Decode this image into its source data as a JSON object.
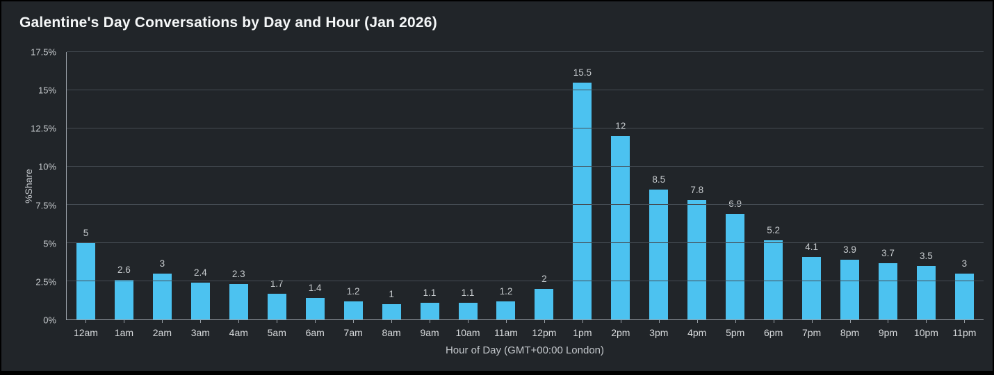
{
  "page": {
    "background_color": "#212529",
    "frame_color": "#000000"
  },
  "chart_data": {
    "type": "bar",
    "title": "Galentine's Day Conversations by Day and Hour (Jan 2026)",
    "xlabel": "Hour of Day (GMT+00:00 London)",
    "ylabel": "%Share",
    "categories": [
      "12am",
      "1am",
      "2am",
      "3am",
      "4am",
      "5am",
      "6am",
      "7am",
      "8am",
      "9am",
      "10am",
      "11am",
      "12pm",
      "1pm",
      "2pm",
      "3pm",
      "4pm",
      "5pm",
      "6pm",
      "7pm",
      "8pm",
      "9pm",
      "10pm",
      "11pm"
    ],
    "values": [
      5,
      2.6,
      3,
      2.4,
      2.3,
      1.7,
      1.4,
      1.2,
      1,
      1.1,
      1.1,
      1.2,
      2,
      15.5,
      12,
      8.5,
      7.8,
      6.9,
      5.2,
      4.1,
      3.9,
      3.7,
      3.5,
      3
    ],
    "value_labels": [
      "5",
      "2.6",
      "3",
      "2.4",
      "2.3",
      "1.7",
      "1.4",
      "1.2",
      "1",
      "1.1",
      "1.1",
      "1.2",
      "2",
      "15.5",
      "12",
      "8.5",
      "7.8",
      "6.9",
      "5.2",
      "4.1",
      "3.9",
      "3.7",
      "3.5",
      "3"
    ],
    "y_ticks": [
      {
        "value": 0,
        "label": "0%"
      },
      {
        "value": 2.5,
        "label": "2.5%"
      },
      {
        "value": 5,
        "label": "5%"
      },
      {
        "value": 7.5,
        "label": "7.5%"
      },
      {
        "value": 10,
        "label": "10%"
      },
      {
        "value": 12.5,
        "label": "12.5%"
      },
      {
        "value": 15,
        "label": "15%"
      },
      {
        "value": 17.5,
        "label": "17.5%"
      }
    ],
    "ylim": [
      0,
      17.5
    ],
    "grid": true,
    "legend": "none",
    "bar_color": "#4cc2f0"
  }
}
